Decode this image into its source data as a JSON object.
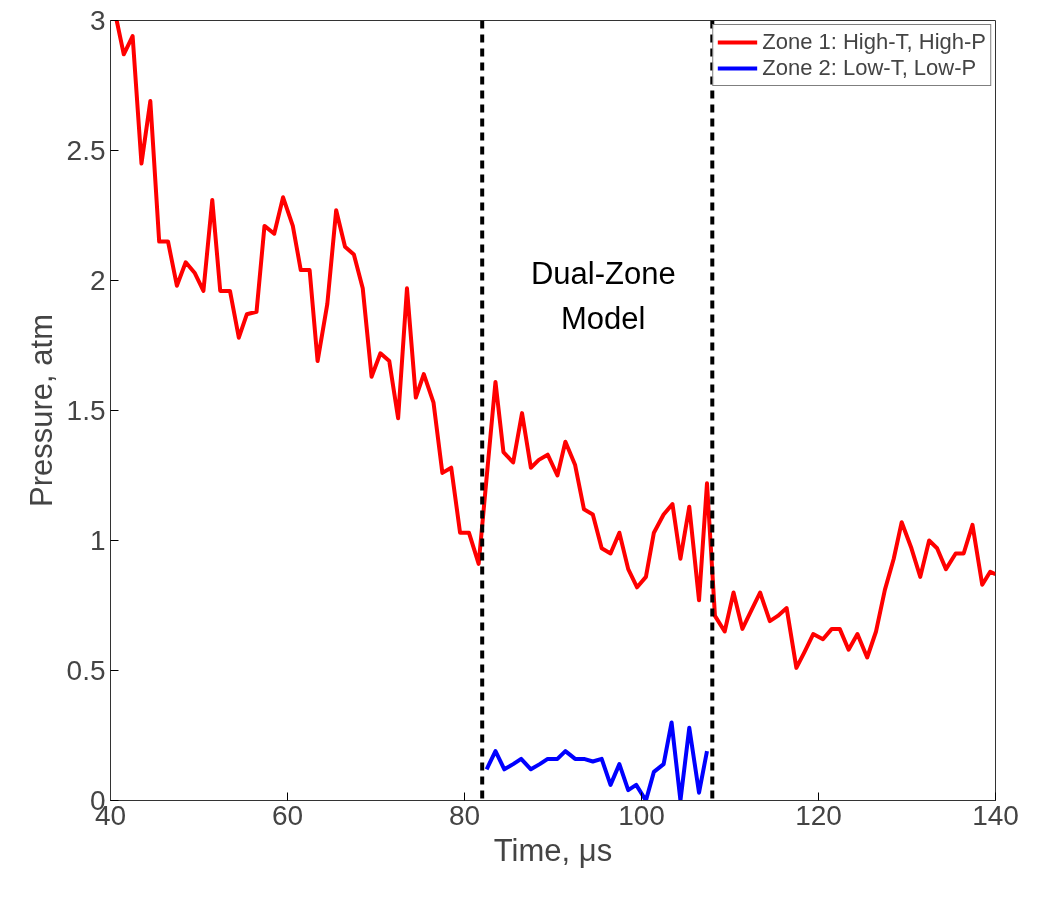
{
  "chart_data": {
    "type": "line",
    "xlabel": "Time, μs",
    "ylabel": "Pressure, atm",
    "xlim": [
      40,
      140
    ],
    "ylim": [
      0,
      3
    ],
    "xticks": [
      40,
      60,
      80,
      100,
      120,
      140
    ],
    "yticks": [
      0,
      0.5,
      1,
      1.5,
      2,
      2.5,
      3
    ],
    "grid": false,
    "legend": "top right",
    "line_style": "solid",
    "marker": "none",
    "series": [
      {
        "name": "Zone 1: High-T, High-P",
        "color": "#ff0000",
        "x": [
          40.7,
          41.5,
          42.5,
          43.5,
          44.5,
          45.5,
          46.5,
          47.5,
          48.5,
          49.5,
          50.5,
          51.5,
          52.4,
          53.5,
          54.5,
          55.4,
          56.5,
          57.4,
          58.5,
          59.5,
          60.6,
          61.5,
          62.5,
          63.4,
          64.5,
          65.5,
          66.5,
          67.5,
          68.5,
          69.5,
          70.5,
          71.5,
          72.5,
          73.5,
          74.5,
          75.4,
          76.5,
          77.5,
          78.5,
          79.5,
          80.5,
          81.6,
          83.5,
          84.4,
          85.5,
          86.5,
          87.5,
          88.4,
          89.4,
          90.5,
          91.4,
          92.5,
          93.5,
          94.5,
          95.5,
          96.5,
          97.5,
          98.5,
          99.5,
          100.5,
          101.4,
          102.5,
          103.5,
          104.4,
          105.4,
          106.5,
          107.4,
          108.3,
          109.4,
          110.4,
          111.4,
          112.4,
          113.4,
          114.5,
          115.4,
          116.4,
          117.5,
          118.4,
          119.4,
          120.5,
          121.5,
          122.4,
          123.4,
          124.4,
          125.5,
          126.5,
          127.5,
          128.5,
          129.4,
          130.5,
          131.5,
          132.5,
          133.4,
          134.4,
          135.5,
          136.4,
          137.4,
          138.5,
          139.4,
          140
        ],
        "values": [
          3.0,
          2.87,
          2.94,
          2.45,
          2.69,
          2.15,
          2.15,
          1.98,
          2.07,
          2.03,
          1.96,
          2.31,
          1.96,
          1.96,
          1.78,
          1.87,
          1.88,
          2.21,
          2.18,
          2.32,
          2.21,
          2.04,
          2.04,
          1.69,
          1.91,
          2.27,
          2.13,
          2.1,
          1.97,
          1.63,
          1.72,
          1.69,
          1.47,
          1.97,
          1.55,
          1.64,
          1.53,
          1.26,
          1.28,
          1.03,
          1.03,
          0.91,
          1.61,
          1.34,
          1.3,
          1.49,
          1.28,
          1.31,
          1.33,
          1.25,
          1.38,
          1.29,
          1.12,
          1.1,
          0.97,
          0.95,
          1.03,
          0.89,
          0.82,
          0.86,
          1.03,
          1.1,
          1.14,
          0.93,
          1.13,
          0.77,
          1.22,
          0.71,
          0.65,
          0.8,
          0.66,
          0.73,
          0.8,
          0.69,
          0.71,
          0.74,
          0.51,
          0.57,
          0.64,
          0.62,
          0.66,
          0.66,
          0.58,
          0.64,
          0.55,
          0.65,
          0.81,
          0.93,
          1.07,
          0.97,
          0.86,
          1.0,
          0.97,
          0.89,
          0.95,
          0.95,
          1.06,
          0.83,
          0.88,
          0.87
        ]
      },
      {
        "name": "Zone 2: Low-T, Low-P",
        "color": "#0000ff",
        "x": [
          82.5,
          83.5,
          84.5,
          85.5,
          86.4,
          87.5,
          88.5,
          89.4,
          90.5,
          91.4,
          92.5,
          93.5,
          94.5,
          95.5,
          96.5,
          97.5,
          98.5,
          99.4,
          100.5,
          101.4,
          102.5,
          103.4,
          104.4,
          105.4,
          106.5,
          107.4
        ],
        "values": [
          0.12,
          0.19,
          0.12,
          0.14,
          0.16,
          0.12,
          0.14,
          0.16,
          0.16,
          0.19,
          0.16,
          0.16,
          0.15,
          0.16,
          0.06,
          0.14,
          0.04,
          0.06,
          0.0,
          0.11,
          0.14,
          0.3,
          0.0,
          0.28,
          0.03,
          0.19
        ]
      }
    ],
    "ref_lines": [
      {
        "axis": "x",
        "value": 82,
        "color": "#000000",
        "line_style": "dashed"
      },
      {
        "axis": "x",
        "value": 108,
        "color": "#000000",
        "line_style": "dashed"
      }
    ],
    "annotations": [
      "Dual-Zone\nModel"
    ]
  }
}
